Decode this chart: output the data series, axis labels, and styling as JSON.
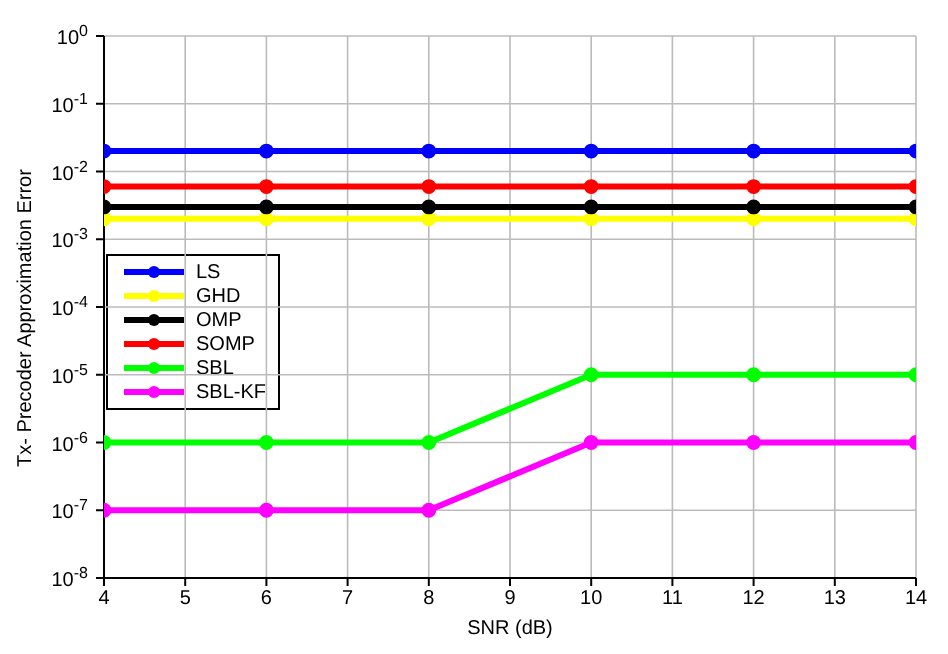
{
  "chart_data": {
    "type": "line",
    "xlabel": "SNR (dB)",
    "ylabel": "Tx- Precoder Approximation Error",
    "x": [
      4,
      6,
      8,
      10,
      12,
      14
    ],
    "series": [
      {
        "name": "LS",
        "color": "#0000ff",
        "values": [
          0.02,
          0.02,
          0.02,
          0.02,
          0.02,
          0.02
        ]
      },
      {
        "name": "GHD",
        "color": "#ffff00",
        "values": [
          0.002,
          0.002,
          0.002,
          0.002,
          0.002,
          0.002
        ]
      },
      {
        "name": "OMP",
        "color": "#000000",
        "values": [
          0.003,
          0.003,
          0.003,
          0.003,
          0.003,
          0.003
        ]
      },
      {
        "name": "SOMP",
        "color": "#ff0000",
        "values": [
          0.006,
          0.006,
          0.006,
          0.006,
          0.006,
          0.006
        ]
      },
      {
        "name": "SBL",
        "color": "#00ff00",
        "values": [
          1e-06,
          1e-06,
          1e-06,
          1e-05,
          1e-05,
          1e-05
        ]
      },
      {
        "name": "SBL-KF",
        "color": "#ff00ff",
        "values": [
          1e-07,
          1e-07,
          1e-07,
          1e-06,
          1e-06,
          1e-06
        ]
      }
    ],
    "xlim": [
      4,
      14
    ],
    "xticks": [
      4,
      5,
      6,
      7,
      8,
      9,
      10,
      11,
      12,
      13,
      14
    ],
    "ylim": [
      1e-08,
      1
    ],
    "yticks": [
      {
        "value": 1e-08,
        "label": "10$^{-8}$"
      },
      {
        "value": 1e-07,
        "label": "10$^{-7}$"
      },
      {
        "value": 1e-06,
        "label": "10$^{-6}$"
      },
      {
        "value": 1e-05,
        "label": "10$^{-5}$"
      },
      {
        "value": 0.0001,
        "label": "10$^{-4}$"
      },
      {
        "value": 0.001,
        "label": "10$^{-3}$"
      },
      {
        "value": 0.01,
        "label": "10$^{-2}$"
      },
      {
        "value": 0.1,
        "label": "10$^{-1}$"
      },
      {
        "value": 1,
        "label": "10$^{0}$"
      }
    ],
    "log": "y",
    "grid": true,
    "legend": "left",
    "marker": "circle",
    "line_style": "solid"
  }
}
